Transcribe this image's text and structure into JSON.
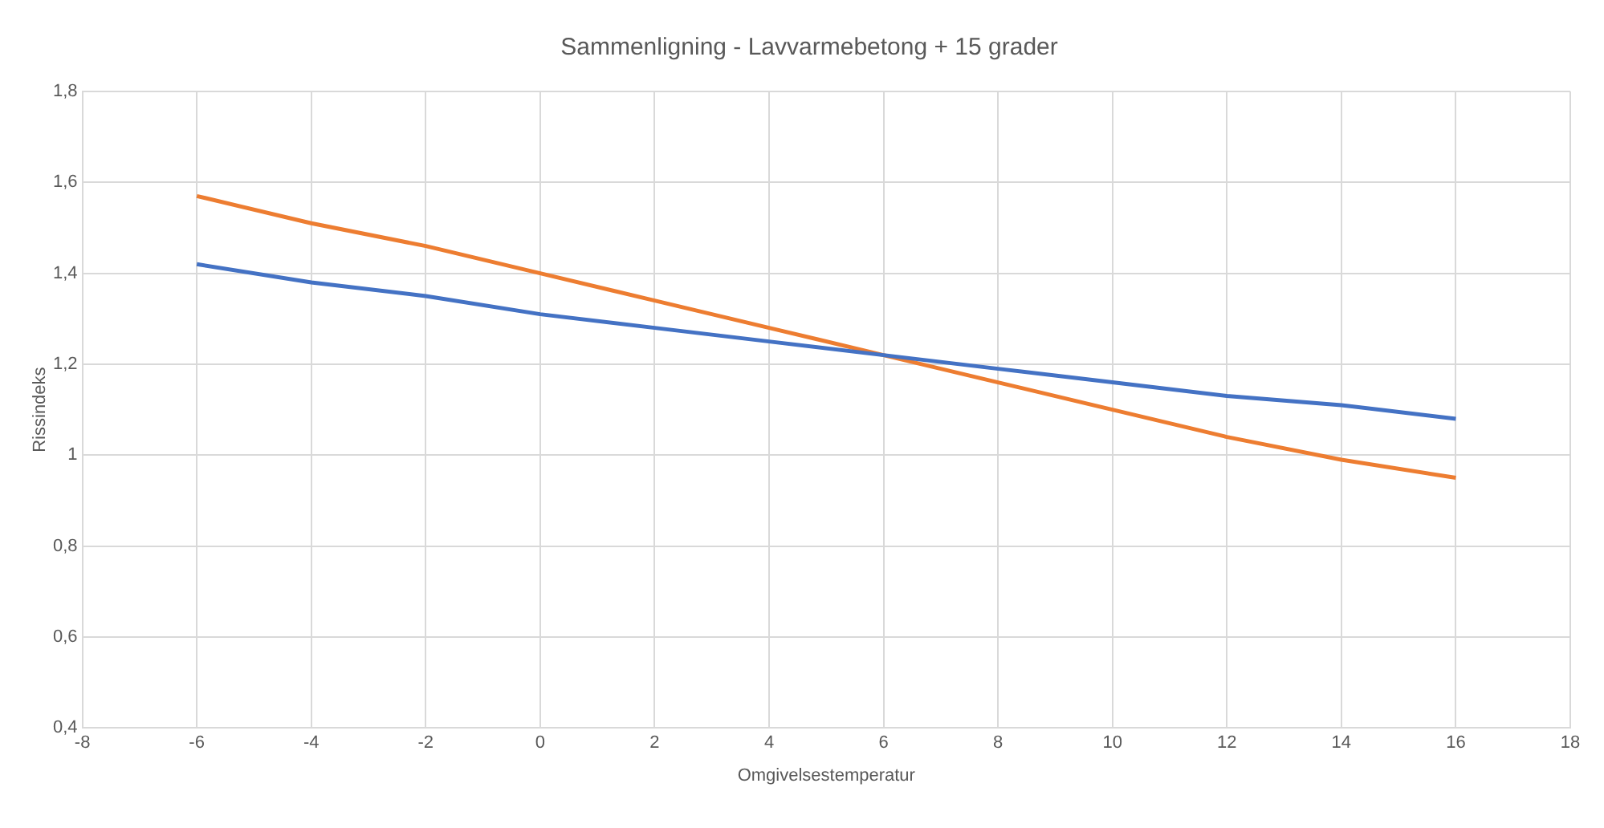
{
  "chart_data": {
    "type": "line",
    "title": "Sammenligning - Lavvarmebetong + 15 grader",
    "xlabel": "Omgivelsestemperatur",
    "ylabel": "Rissindeks",
    "x": [
      -6,
      -4,
      -2,
      0,
      2,
      4,
      6,
      8,
      10,
      12,
      14,
      16
    ],
    "series": [
      {
        "color": "#4472c4",
        "values": [
          1.42,
          1.38,
          1.35,
          1.31,
          1.28,
          1.25,
          1.22,
          1.19,
          1.16,
          1.13,
          1.11,
          1.08
        ]
      },
      {
        "color": "#ed7d31",
        "values": [
          1.57,
          1.51,
          1.46,
          1.4,
          1.34,
          1.28,
          1.22,
          1.16,
          1.1,
          1.04,
          0.99,
          0.95
        ]
      }
    ],
    "xlim": [
      -8,
      18
    ],
    "xticks": [
      -8,
      -6,
      -4,
      -2,
      0,
      2,
      4,
      6,
      8,
      10,
      12,
      14,
      16,
      18
    ],
    "ylim": [
      0.4,
      1.8
    ],
    "yticks": [
      {
        "value": 0.4,
        "label": "0,4"
      },
      {
        "value": 0.6,
        "label": "0,6"
      },
      {
        "value": 0.8,
        "label": "0,8"
      },
      {
        "value": 1,
        "label": "1"
      },
      {
        "value": 1.2,
        "label": "1,2"
      },
      {
        "value": 1.4,
        "label": "1,4"
      },
      {
        "value": 1.6,
        "label": "1,6"
      },
      {
        "value": 1.8,
        "label": "1,8"
      }
    ],
    "grid": true,
    "marker": "none",
    "line_style": "solid"
  }
}
